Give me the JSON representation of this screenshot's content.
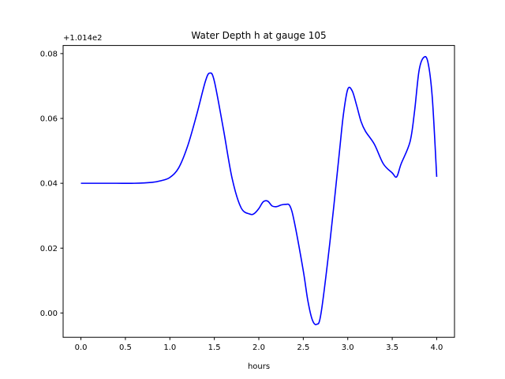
{
  "chart_data": {
    "type": "line",
    "title": "Water Depth h at gauge 105",
    "xlabel": "hours",
    "ylabel": "",
    "y_offset_label": "+1.014e2",
    "xlim": [
      -0.2,
      4.2
    ],
    "ylim": [
      -0.0075,
      0.0825
    ],
    "x_ticks": [
      0.0,
      0.5,
      1.0,
      1.5,
      2.0,
      2.5,
      3.0,
      3.5,
      4.0
    ],
    "x_tick_labels": [
      "0.0",
      "0.5",
      "1.0",
      "1.5",
      "2.0",
      "2.5",
      "3.0",
      "3.5",
      "4.0"
    ],
    "y_ticks": [
      0.0,
      0.02,
      0.04,
      0.06,
      0.08
    ],
    "y_tick_labels": [
      "0.00",
      "0.02",
      "0.04",
      "0.06",
      "0.08"
    ],
    "grid": false,
    "color": "#0000ff",
    "series": [
      {
        "x": [
          0.0,
          0.2,
          0.4,
          0.6,
          0.8,
          0.9,
          1.0,
          1.1,
          1.2,
          1.3,
          1.4,
          1.45,
          1.5,
          1.6,
          1.7,
          1.8,
          1.9,
          1.95,
          2.0,
          2.05,
          2.1,
          2.15,
          2.2,
          2.25,
          2.3,
          2.35,
          2.4,
          2.5,
          2.55,
          2.6,
          2.65,
          2.7,
          2.8,
          2.9,
          2.95,
          3.0,
          3.05,
          3.1,
          3.15,
          3.2,
          3.3,
          3.4,
          3.5,
          3.55,
          3.6,
          3.7,
          3.75,
          3.8,
          3.85,
          3.9,
          3.95,
          4.0
        ],
        "y": [
          0.04,
          0.04,
          0.04,
          0.04,
          0.0403,
          0.0408,
          0.0418,
          0.0448,
          0.0515,
          0.061,
          0.0715,
          0.074,
          0.0715,
          0.057,
          0.0415,
          0.0325,
          0.0305,
          0.0307,
          0.0322,
          0.0343,
          0.0345,
          0.033,
          0.0328,
          0.0333,
          0.0335,
          0.033,
          0.028,
          0.013,
          0.004,
          -0.002,
          -0.0035,
          0.0,
          0.022,
          0.048,
          0.061,
          0.069,
          0.0685,
          0.064,
          0.059,
          0.056,
          0.052,
          0.046,
          0.0432,
          0.042,
          0.046,
          0.0528,
          0.062,
          0.0745,
          0.0787,
          0.0775,
          0.0665,
          0.042
        ]
      }
    ]
  }
}
